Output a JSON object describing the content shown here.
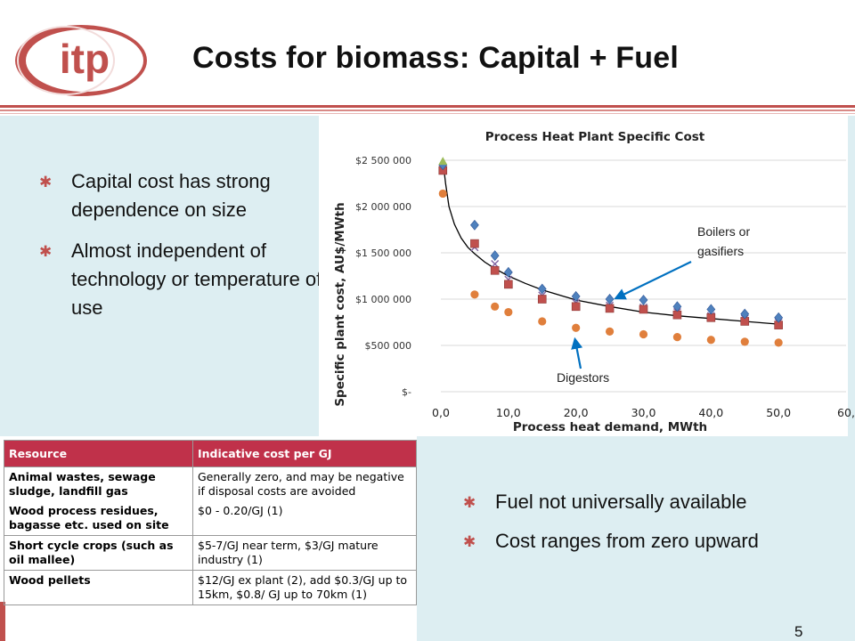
{
  "slide": {
    "title": "Costs for biomass: Capital + Fuel",
    "logo_text": "itp",
    "page_number": "5",
    "accent_color": "#c0504d"
  },
  "bullets_capital": [
    "Capital cost has strong dependence on size",
    "Almost independent of technology or temperature of use"
  ],
  "bullets_fuel": [
    "Fuel not universally available",
    "Cost ranges from zero upward"
  ],
  "table": {
    "headers": [
      "Resource",
      "Indicative cost per GJ"
    ],
    "rows": [
      [
        "Animal wastes, sewage sludge, landfill gas",
        "Generally zero, and may be negative if disposal costs are avoided"
      ],
      [
        "Wood process residues, bagasse etc. used on site",
        "$0 - 0.20/GJ   (1)"
      ],
      [
        "Short cycle crops (such as oil mallee)",
        "$5-7/GJ near term, $3/GJ mature industry  (1)"
      ],
      [
        "Wood pellets",
        "$12/GJ ex plant (2), add $0.3/GJ up to 15km, $0.8/ GJ up to 70km (1)"
      ]
    ]
  },
  "chart_data": {
    "type": "scatter",
    "title": "Process Heat Plant Specific Cost",
    "xlabel": "Process heat demand, MWth",
    "ylabel": "Specific plant cost, AU$/MWth",
    "xlim": [
      0,
      60
    ],
    "ylim": [
      0,
      2500000
    ],
    "x_ticks": [
      "0,0",
      "10,0",
      "20,0",
      "30,0",
      "40,0",
      "50,0",
      "60,"
    ],
    "y_ticks": [
      "$-",
      "$500 000",
      "$1 000 000",
      "$1 500 000",
      "$2 000 000",
      "$2 500 000"
    ],
    "grid": true,
    "series": [
      {
        "marker": "diamond",
        "color": "#4f81bd",
        "x": [
          0.3,
          5,
          8,
          10,
          15,
          20,
          25,
          30,
          35,
          40,
          45,
          50
        ],
        "y": [
          2450000,
          1800000,
          1470000,
          1290000,
          1110000,
          1030000,
          1000000,
          990000,
          920000,
          890000,
          840000,
          800000
        ]
      },
      {
        "marker": "square",
        "color": "#c0504d",
        "x": [
          0.3,
          5,
          8,
          10,
          15,
          20,
          25,
          30,
          35,
          40,
          45,
          50
        ],
        "y": [
          2390000,
          1600000,
          1310000,
          1160000,
          1000000,
          920000,
          900000,
          890000,
          830000,
          800000,
          760000,
          720000
        ]
      },
      {
        "marker": "cross",
        "color": "#8064a2",
        "x": [
          0.3,
          5,
          8,
          10,
          15,
          20,
          25,
          30,
          35,
          40,
          45,
          50
        ],
        "y": [
          2420000,
          1560000,
          1380000,
          1210000,
          1040000,
          960000,
          930000,
          910000,
          860000,
          820000,
          790000,
          750000
        ]
      },
      {
        "marker": "triangle",
        "color": "#9bbb59",
        "x": [
          0.3
        ],
        "y": [
          2480000
        ]
      },
      {
        "marker": "circle",
        "color": "#e07f3c",
        "x": [
          0.3,
          5,
          8,
          10,
          15,
          20,
          25,
          30,
          35,
          40,
          45,
          50
        ],
        "y": [
          2140000,
          1050000,
          920000,
          860000,
          760000,
          690000,
          650000,
          620000,
          590000,
          560000,
          540000,
          530000
        ]
      }
    ],
    "trendline": {
      "color": "#000000",
      "x": [
        0.3,
        0.7,
        1.2,
        2,
        3,
        4,
        5,
        6.5,
        8,
        10,
        12.5,
        15,
        20,
        25,
        30,
        35,
        40,
        45,
        50
      ],
      "y": [
        2500000,
        2250000,
        2000000,
        1810000,
        1660000,
        1560000,
        1490000,
        1400000,
        1330000,
        1250000,
        1170000,
        1100000,
        990000,
        920000,
        860000,
        820000,
        790000,
        760000,
        730000
      ]
    },
    "annotations": [
      {
        "text": "Boilers or gasifiers",
        "color": "#0070c0",
        "arrow_to": [
          25,
          1000000
        ]
      },
      {
        "text": "Digestors",
        "color": "#0070c0",
        "arrow_to": [
          20,
          680000
        ]
      }
    ]
  }
}
